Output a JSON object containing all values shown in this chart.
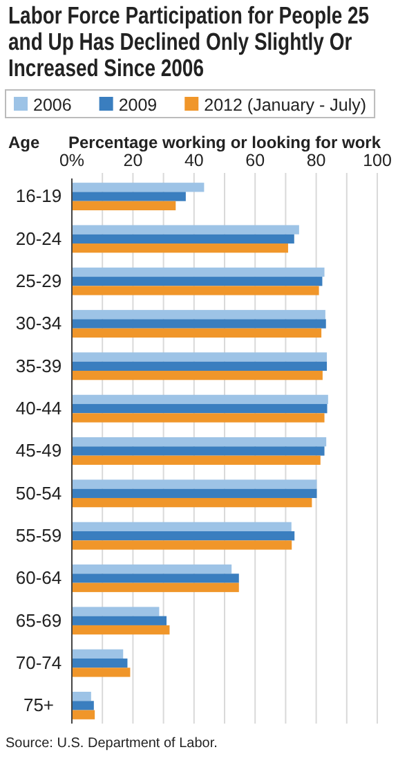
{
  "chart_data": {
    "type": "bar",
    "orientation": "horizontal",
    "title": "Labor Force Participation for People 25 and Up Has Declined Only Slightly Or Increased Since 2006",
    "xlabel": "Percentage working or looking for work",
    "ylabel": "Age",
    "categories": [
      "16-19",
      "20-24",
      "25-29",
      "30-34",
      "35-39",
      "40-44",
      "45-49",
      "50-54",
      "55-59",
      "60-64",
      "65-69",
      "70-74",
      "75+"
    ],
    "series": [
      {
        "name": "2006",
        "color": "#9dc3e6",
        "values": [
          43.3,
          74.4,
          82.7,
          83.0,
          83.5,
          83.9,
          83.3,
          80.2,
          71.9,
          52.3,
          28.6,
          16.8,
          6.3
        ]
      },
      {
        "name": "2009",
        "color": "#3a7ebf",
        "values": [
          37.3,
          72.8,
          82.0,
          83.2,
          83.5,
          83.6,
          82.7,
          80.2,
          72.9,
          54.7,
          31.0,
          18.2,
          7.2
        ]
      },
      {
        "name": "2012 (January - July)",
        "color": "#f0962a",
        "values": [
          34.0,
          70.8,
          80.9,
          81.7,
          82.1,
          82.7,
          81.4,
          78.6,
          72.0,
          54.7,
          32.0,
          19.1,
          7.5
        ]
      }
    ],
    "xlim": [
      0,
      100
    ],
    "xticks": [
      {
        "value": 0,
        "label": "0%"
      },
      {
        "value": 10,
        "label": null
      },
      20,
      {
        "value": 30,
        "label": null
      },
      40,
      {
        "value": 50,
        "label": null
      },
      60,
      {
        "value": 70,
        "label": null
      },
      80,
      {
        "value": 90,
        "label": null
      },
      100
    ],
    "grid": "x",
    "legend": "top",
    "annotations": [
      "Source: U.S. Department of Labor."
    ]
  }
}
